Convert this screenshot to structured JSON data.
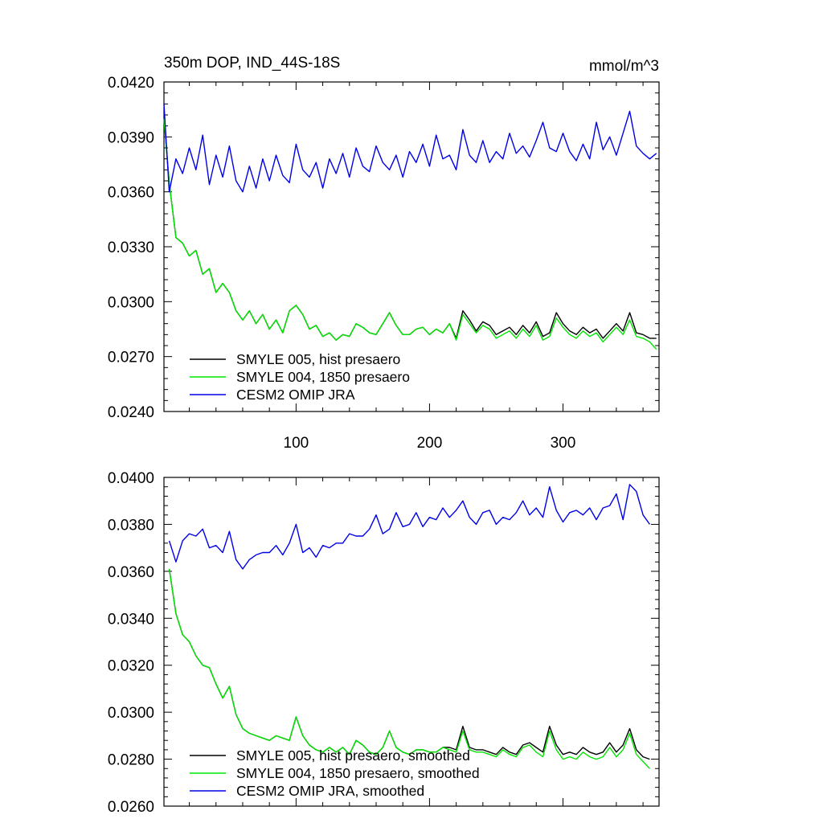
{
  "figure": {
    "title_left": "350m DOP, IND_44S-18S",
    "title_right": "mmol/m^3"
  },
  "colors": {
    "black": "#000000",
    "green": "#00e600",
    "blue": "#0000e6"
  },
  "chart_data": [
    {
      "type": "line",
      "title": "350m DOP, IND_44S-18S",
      "units": "mmol/m^3",
      "xlim": [
        1,
        372
      ],
      "ylim": [
        0.024,
        0.042
      ],
      "xticks": [
        100,
        200,
        300
      ],
      "yticks": [
        0.024,
        0.027,
        0.03,
        0.033,
        0.036,
        0.039,
        0.042
      ],
      "ytick_labels": [
        "0.0240",
        "0.0270",
        "0.0300",
        "0.0330",
        "0.0360",
        "0.0390",
        "0.0420"
      ],
      "legend_position": "bottom-left",
      "series": [
        {
          "name": "SMYLE 005, hist presaero",
          "color": "#000000",
          "x": [
            1,
            5,
            10,
            15,
            20,
            25,
            30,
            35,
            40,
            45,
            50,
            55,
            60,
            65,
            70,
            75,
            80,
            85,
            90,
            95,
            100,
            105,
            110,
            115,
            120,
            125,
            130,
            135,
            140,
            145,
            150,
            155,
            160,
            165,
            170,
            175,
            180,
            185,
            190,
            195,
            200,
            205,
            210,
            215,
            220,
            225,
            230,
            235,
            240,
            245,
            250,
            255,
            260,
            265,
            270,
            275,
            280,
            285,
            290,
            295,
            300,
            305,
            310,
            315,
            320,
            325,
            330,
            335,
            340,
            345,
            350,
            355,
            360,
            365,
            370
          ],
          "values": [
            0.04,
            0.0365,
            0.0335,
            0.0332,
            0.0325,
            0.0328,
            0.0315,
            0.0318,
            0.0305,
            0.031,
            0.0305,
            0.0295,
            0.029,
            0.0295,
            0.0288,
            0.0293,
            0.0285,
            0.029,
            0.0283,
            0.0295,
            0.0298,
            0.0293,
            0.0285,
            0.0287,
            0.0281,
            0.0283,
            0.0279,
            0.0282,
            0.0281,
            0.0288,
            0.0286,
            0.0283,
            0.0282,
            0.0288,
            0.0294,
            0.0287,
            0.0282,
            0.0282,
            0.0285,
            0.0286,
            0.0282,
            0.0285,
            0.0283,
            0.0288,
            0.028,
            0.0295,
            0.029,
            0.0284,
            0.0289,
            0.0287,
            0.0282,
            0.0284,
            0.0286,
            0.0282,
            0.0287,
            0.0283,
            0.0289,
            0.0281,
            0.0283,
            0.0294,
            0.0288,
            0.0284,
            0.0282,
            0.0286,
            0.0283,
            0.0285,
            0.028,
            0.0284,
            0.0288,
            0.0284,
            0.0294,
            0.0283,
            0.0282,
            0.028,
            0.028
          ]
        },
        {
          "name": "SMYLE 004, 1850 presaero",
          "color": "#00e600",
          "x": [
            1,
            5,
            10,
            15,
            20,
            25,
            30,
            35,
            40,
            45,
            50,
            55,
            60,
            65,
            70,
            75,
            80,
            85,
            90,
            95,
            100,
            105,
            110,
            115,
            120,
            125,
            130,
            135,
            140,
            145,
            150,
            155,
            160,
            165,
            170,
            175,
            180,
            185,
            190,
            195,
            200,
            205,
            210,
            215,
            220,
            225,
            230,
            235,
            240,
            245,
            250,
            255,
            260,
            265,
            270,
            275,
            280,
            285,
            290,
            295,
            300,
            305,
            310,
            315,
            320,
            325,
            330,
            335,
            340,
            345,
            350,
            355,
            360,
            365,
            370
          ],
          "values": [
            0.04,
            0.0365,
            0.0335,
            0.0332,
            0.0325,
            0.0328,
            0.0315,
            0.0318,
            0.0305,
            0.031,
            0.0305,
            0.0295,
            0.029,
            0.0295,
            0.0288,
            0.0293,
            0.0285,
            0.029,
            0.0283,
            0.0295,
            0.0298,
            0.0293,
            0.0285,
            0.0287,
            0.0281,
            0.0283,
            0.0279,
            0.0282,
            0.0281,
            0.0288,
            0.0286,
            0.0283,
            0.0282,
            0.0288,
            0.0294,
            0.0287,
            0.0282,
            0.0282,
            0.0285,
            0.0286,
            0.0282,
            0.0285,
            0.0283,
            0.0288,
            0.0279,
            0.0293,
            0.0288,
            0.0283,
            0.0287,
            0.0285,
            0.028,
            0.0282,
            0.0284,
            0.028,
            0.0285,
            0.0281,
            0.0287,
            0.0279,
            0.0281,
            0.0291,
            0.0286,
            0.0282,
            0.028,
            0.0284,
            0.0281,
            0.0283,
            0.0278,
            0.0282,
            0.0286,
            0.0282,
            0.029,
            0.0281,
            0.028,
            0.0278,
            0.0274
          ]
        },
        {
          "name": "CESM2 OMIP JRA",
          "color": "#0000e6",
          "x": [
            1,
            5,
            10,
            15,
            20,
            25,
            30,
            35,
            40,
            45,
            50,
            55,
            60,
            65,
            70,
            75,
            80,
            85,
            90,
            95,
            100,
            105,
            110,
            115,
            120,
            125,
            130,
            135,
            140,
            145,
            150,
            155,
            160,
            165,
            170,
            175,
            180,
            185,
            190,
            195,
            200,
            205,
            210,
            215,
            220,
            225,
            230,
            235,
            240,
            245,
            250,
            255,
            260,
            265,
            270,
            275,
            280,
            285,
            290,
            295,
            300,
            305,
            310,
            315,
            320,
            325,
            330,
            335,
            340,
            345,
            350,
            355,
            360,
            365,
            370
          ],
          "values": [
            0.0408,
            0.036,
            0.0378,
            0.037,
            0.0384,
            0.0372,
            0.0391,
            0.0364,
            0.038,
            0.0368,
            0.0385,
            0.0366,
            0.036,
            0.0374,
            0.0362,
            0.0378,
            0.0366,
            0.038,
            0.0369,
            0.0365,
            0.0386,
            0.0372,
            0.0368,
            0.0376,
            0.0362,
            0.0378,
            0.037,
            0.0381,
            0.0368,
            0.0384,
            0.0374,
            0.0371,
            0.0385,
            0.0376,
            0.0372,
            0.038,
            0.0368,
            0.0382,
            0.0376,
            0.0386,
            0.0374,
            0.0391,
            0.0378,
            0.038,
            0.0372,
            0.0394,
            0.038,
            0.0376,
            0.0388,
            0.0376,
            0.0382,
            0.0378,
            0.0392,
            0.0381,
            0.0385,
            0.0379,
            0.0388,
            0.0398,
            0.0384,
            0.0382,
            0.0392,
            0.0382,
            0.0377,
            0.0386,
            0.0378,
            0.0398,
            0.0383,
            0.039,
            0.038,
            0.0392,
            0.0404,
            0.0385,
            0.0381,
            0.0378,
            0.0381
          ]
        }
      ]
    },
    {
      "type": "line",
      "xlim": [
        1,
        372
      ],
      "ylim": [
        0.026,
        0.04
      ],
      "xticks": [
        100,
        200,
        300
      ],
      "yticks": [
        0.026,
        0.028,
        0.03,
        0.032,
        0.034,
        0.036,
        0.038,
        0.04
      ],
      "ytick_labels": [
        "0.0260",
        "0.0280",
        "0.0300",
        "0.0320",
        "0.0340",
        "0.0360",
        "0.0380",
        "0.0400"
      ],
      "legend_position": "bottom-left",
      "series": [
        {
          "name": "SMYLE 005, hist presaero, smoothed",
          "color": "#000000",
          "x": [
            5,
            10,
            15,
            20,
            25,
            30,
            35,
            40,
            45,
            50,
            55,
            60,
            65,
            70,
            75,
            80,
            85,
            90,
            95,
            100,
            105,
            110,
            115,
            120,
            125,
            130,
            135,
            140,
            145,
            150,
            155,
            160,
            165,
            170,
            175,
            180,
            185,
            190,
            195,
            200,
            205,
            210,
            215,
            220,
            225,
            230,
            235,
            240,
            245,
            250,
            255,
            260,
            265,
            270,
            275,
            280,
            285,
            290,
            295,
            300,
            305,
            310,
            315,
            320,
            325,
            330,
            335,
            340,
            345,
            350,
            355,
            360,
            365
          ],
          "values": [
            0.0361,
            0.0342,
            0.0333,
            0.033,
            0.0324,
            0.032,
            0.0319,
            0.0312,
            0.0306,
            0.0311,
            0.0299,
            0.0293,
            0.0291,
            0.029,
            0.0289,
            0.0288,
            0.029,
            0.0289,
            0.0288,
            0.0298,
            0.029,
            0.0286,
            0.0284,
            0.0283,
            0.0285,
            0.0283,
            0.0285,
            0.0282,
            0.0288,
            0.0286,
            0.0283,
            0.0282,
            0.0285,
            0.0292,
            0.0285,
            0.0283,
            0.0282,
            0.0284,
            0.0284,
            0.0283,
            0.0283,
            0.0285,
            0.0285,
            0.0284,
            0.0294,
            0.0285,
            0.0284,
            0.0284,
            0.0283,
            0.0282,
            0.0285,
            0.0283,
            0.0282,
            0.0286,
            0.0287,
            0.0285,
            0.0283,
            0.0294,
            0.0286,
            0.0282,
            0.0283,
            0.0282,
            0.0285,
            0.0283,
            0.0282,
            0.0283,
            0.0287,
            0.0283,
            0.0286,
            0.0293,
            0.0284,
            0.0281,
            0.028
          ]
        },
        {
          "name": "SMYLE 004, 1850 presaero, smoothed",
          "color": "#00e600",
          "x": [
            5,
            10,
            15,
            20,
            25,
            30,
            35,
            40,
            45,
            50,
            55,
            60,
            65,
            70,
            75,
            80,
            85,
            90,
            95,
            100,
            105,
            110,
            115,
            120,
            125,
            130,
            135,
            140,
            145,
            150,
            155,
            160,
            165,
            170,
            175,
            180,
            185,
            190,
            195,
            200,
            205,
            210,
            215,
            220,
            225,
            230,
            235,
            240,
            245,
            250,
            255,
            260,
            265,
            270,
            275,
            280,
            285,
            290,
            295,
            300,
            305,
            310,
            315,
            320,
            325,
            330,
            335,
            340,
            345,
            350,
            355,
            360,
            365
          ],
          "values": [
            0.0361,
            0.0342,
            0.0333,
            0.033,
            0.0324,
            0.032,
            0.0319,
            0.0312,
            0.0306,
            0.0311,
            0.0299,
            0.0293,
            0.0291,
            0.029,
            0.0289,
            0.0288,
            0.029,
            0.0289,
            0.0288,
            0.0298,
            0.029,
            0.0286,
            0.0284,
            0.0283,
            0.0285,
            0.0283,
            0.0285,
            0.0282,
            0.0288,
            0.0286,
            0.0283,
            0.0282,
            0.0285,
            0.0292,
            0.0285,
            0.0283,
            0.0282,
            0.0284,
            0.0284,
            0.0283,
            0.0283,
            0.0285,
            0.0284,
            0.0283,
            0.0292,
            0.0284,
            0.0283,
            0.0283,
            0.0282,
            0.0281,
            0.0284,
            0.0282,
            0.0281,
            0.0285,
            0.0286,
            0.0283,
            0.0281,
            0.0292,
            0.0284,
            0.028,
            0.0281,
            0.028,
            0.0283,
            0.0281,
            0.028,
            0.0281,
            0.0285,
            0.0281,
            0.0284,
            0.0291,
            0.0282,
            0.0279,
            0.0276
          ]
        },
        {
          "name": "CESM2 OMIP JRA, smoothed",
          "color": "#0000e6",
          "x": [
            5,
            10,
            15,
            20,
            25,
            30,
            35,
            40,
            45,
            50,
            55,
            60,
            65,
            70,
            75,
            80,
            85,
            90,
            95,
            100,
            105,
            110,
            115,
            120,
            125,
            130,
            135,
            140,
            145,
            150,
            155,
            160,
            165,
            170,
            175,
            180,
            185,
            190,
            195,
            200,
            205,
            210,
            215,
            220,
            225,
            230,
            235,
            240,
            245,
            250,
            255,
            260,
            265,
            270,
            275,
            280,
            285,
            290,
            295,
            300,
            305,
            310,
            315,
            320,
            325,
            330,
            335,
            340,
            345,
            350,
            355,
            360,
            365
          ],
          "values": [
            0.0373,
            0.0364,
            0.0373,
            0.0376,
            0.0375,
            0.0378,
            0.037,
            0.0371,
            0.0368,
            0.0377,
            0.0365,
            0.0361,
            0.0365,
            0.0367,
            0.0368,
            0.0368,
            0.0371,
            0.0367,
            0.0372,
            0.038,
            0.0368,
            0.037,
            0.0366,
            0.0371,
            0.037,
            0.0372,
            0.0372,
            0.0376,
            0.0375,
            0.0375,
            0.0378,
            0.0384,
            0.0376,
            0.0378,
            0.0385,
            0.0379,
            0.038,
            0.0385,
            0.0379,
            0.0383,
            0.0382,
            0.0387,
            0.0383,
            0.0386,
            0.039,
            0.0383,
            0.038,
            0.0385,
            0.0386,
            0.038,
            0.0383,
            0.0382,
            0.0385,
            0.039,
            0.0384,
            0.0387,
            0.0383,
            0.0396,
            0.0386,
            0.0381,
            0.0385,
            0.0386,
            0.0384,
            0.0387,
            0.0382,
            0.0387,
            0.0388,
            0.0393,
            0.0382,
            0.0397,
            0.0394,
            0.0384,
            0.038
          ]
        }
      ]
    }
  ]
}
